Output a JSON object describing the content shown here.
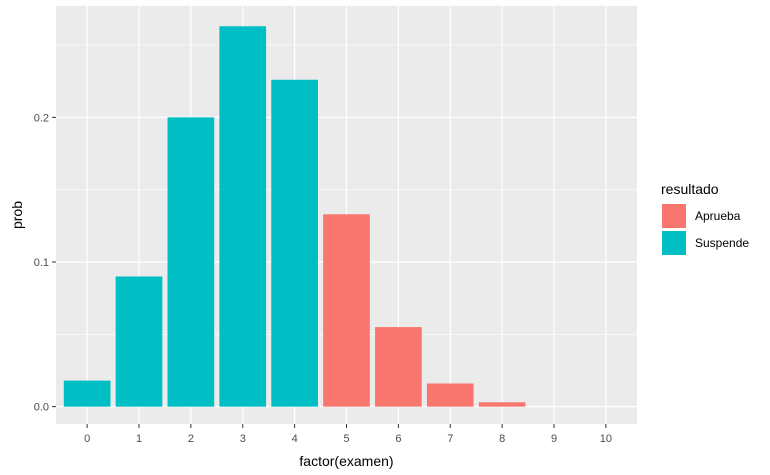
{
  "chart_data": {
    "type": "bar",
    "categories": [
      "0",
      "1",
      "2",
      "3",
      "4",
      "5",
      "6",
      "7",
      "8",
      "9",
      "10"
    ],
    "values": [
      0.018,
      0.09,
      0.2,
      0.263,
      0.226,
      0.133,
      0.055,
      0.016,
      0.003,
      0.0,
      0.0
    ],
    "groups": [
      "Suspende",
      "Suspende",
      "Suspende",
      "Suspende",
      "Suspende",
      "Aprueba",
      "Aprueba",
      "Aprueba",
      "Aprueba",
      "Aprueba",
      "Aprueba"
    ],
    "xlabel": "factor(examen)",
    "ylabel": "prob",
    "ylim": [
      -0.012,
      0.277
    ],
    "yticks": [
      0.0,
      0.1,
      0.2
    ],
    "ytick_labels": [
      "0.0",
      "0.1",
      "0.2"
    ],
    "grid": true,
    "legend": {
      "title": "resultado",
      "position": "right",
      "entries": [
        {
          "name": "Aprueba",
          "color": "#f8766d"
        },
        {
          "name": "Suspende",
          "color": "#00bfc4"
        }
      ]
    },
    "colors": {
      "Aprueba": "#f8766d",
      "Suspende": "#00bfc4",
      "panel": "#ebebeb",
      "grid": "#ffffff"
    }
  }
}
